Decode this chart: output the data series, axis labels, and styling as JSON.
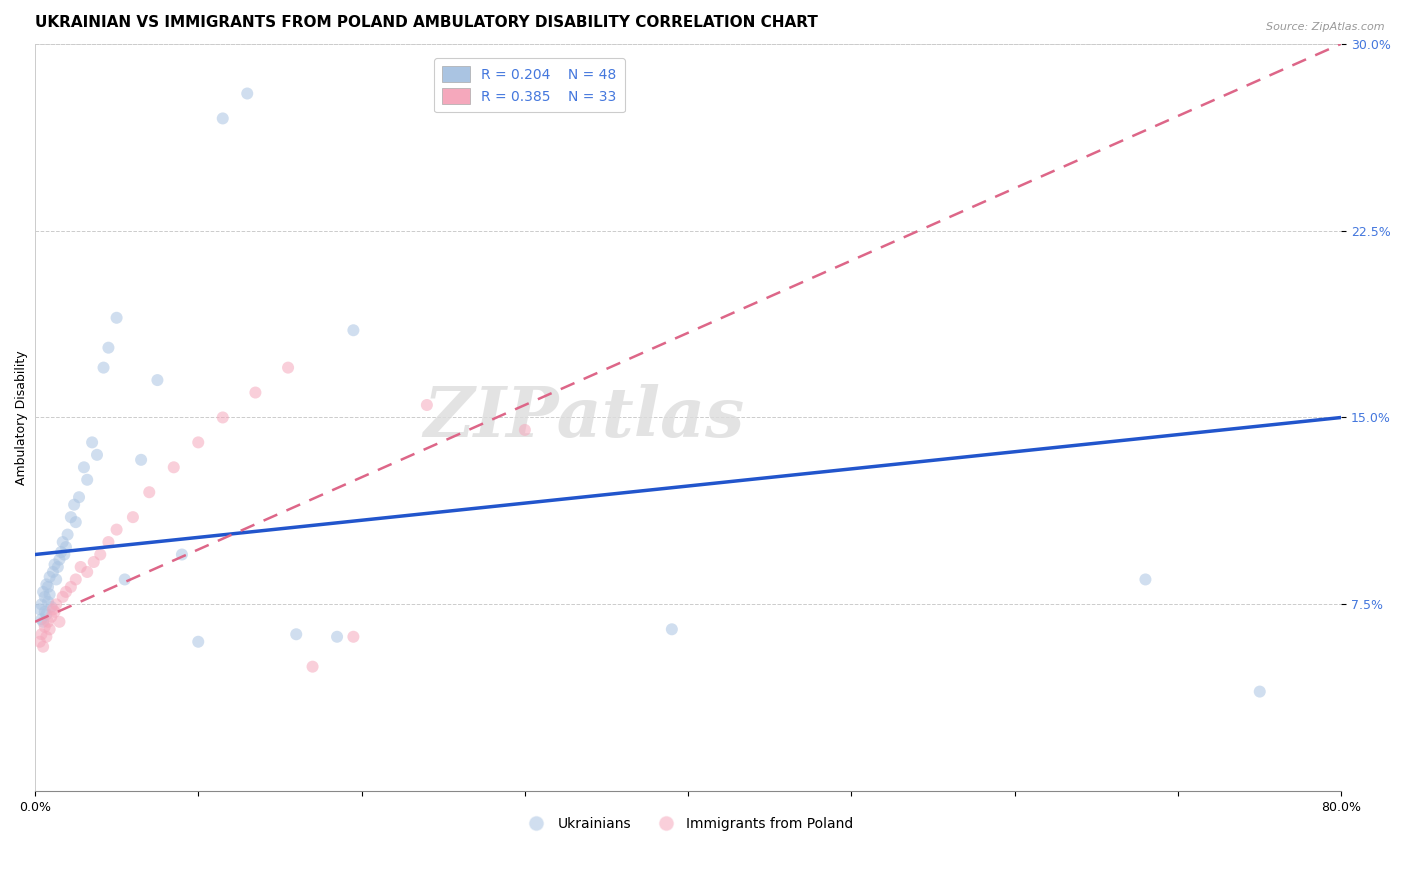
{
  "title": "UKRAINIAN VS IMMIGRANTS FROM POLAND AMBULATORY DISABILITY CORRELATION CHART",
  "source": "Source: ZipAtlas.com",
  "ylabel": "Ambulatory Disability",
  "xlim": [
    0.0,
    0.8
  ],
  "ylim": [
    0.0,
    0.3
  ],
  "ytick_positions": [
    0.075,
    0.15,
    0.225,
    0.3
  ],
  "ytick_labels": [
    "7.5%",
    "15.0%",
    "22.5%",
    "30.0%"
  ],
  "legend_r1": "R = 0.204",
  "legend_n1": "N = 48",
  "legend_r2": "R = 0.385",
  "legend_n2": "N = 33",
  "blue_color": "#aac4e2",
  "pink_color": "#f5a8bc",
  "line_blue": "#2255cc",
  "line_pink": "#dd6688",
  "tick_color_y": "#4477dd",
  "grid_color": "#cccccc",
  "background_color": "#ffffff",
  "ukrainians_x": [
    0.003,
    0.004,
    0.004,
    0.005,
    0.005,
    0.006,
    0.006,
    0.007,
    0.007,
    0.008,
    0.008,
    0.009,
    0.009,
    0.01,
    0.011,
    0.012,
    0.013,
    0.014,
    0.015,
    0.016,
    0.017,
    0.018,
    0.019,
    0.02,
    0.022,
    0.024,
    0.025,
    0.027,
    0.03,
    0.032,
    0.035,
    0.038,
    0.042,
    0.045,
    0.05,
    0.055,
    0.065,
    0.075,
    0.09,
    0.1,
    0.115,
    0.13,
    0.16,
    0.185,
    0.195,
    0.39,
    0.68,
    0.75
  ],
  "ukrainians_y": [
    0.073,
    0.069,
    0.075,
    0.068,
    0.08,
    0.072,
    0.078,
    0.071,
    0.083,
    0.076,
    0.082,
    0.079,
    0.086,
    0.074,
    0.088,
    0.091,
    0.085,
    0.09,
    0.093,
    0.096,
    0.1,
    0.095,
    0.098,
    0.103,
    0.11,
    0.115,
    0.108,
    0.118,
    0.13,
    0.125,
    0.14,
    0.135,
    0.17,
    0.178,
    0.19,
    0.085,
    0.133,
    0.165,
    0.095,
    0.06,
    0.27,
    0.28,
    0.063,
    0.062,
    0.185,
    0.065,
    0.085,
    0.04
  ],
  "poland_x": [
    0.003,
    0.004,
    0.005,
    0.006,
    0.007,
    0.008,
    0.009,
    0.01,
    0.011,
    0.012,
    0.013,
    0.015,
    0.017,
    0.019,
    0.022,
    0.025,
    0.028,
    0.032,
    0.036,
    0.04,
    0.045,
    0.05,
    0.06,
    0.07,
    0.085,
    0.1,
    0.115,
    0.135,
    0.155,
    0.17,
    0.195,
    0.24,
    0.3
  ],
  "poland_y": [
    0.06,
    0.063,
    0.058,
    0.066,
    0.062,
    0.068,
    0.065,
    0.07,
    0.073,
    0.072,
    0.075,
    0.068,
    0.078,
    0.08,
    0.082,
    0.085,
    0.09,
    0.088,
    0.092,
    0.095,
    0.1,
    0.105,
    0.11,
    0.12,
    0.13,
    0.14,
    0.15,
    0.16,
    0.17,
    0.05,
    0.062,
    0.155,
    0.145
  ],
  "blue_line_x": [
    0.0,
    0.8
  ],
  "blue_line_y": [
    0.095,
    0.15
  ],
  "pink_line_x": [
    0.0,
    0.8
  ],
  "pink_line_y": [
    0.068,
    0.3
  ],
  "watermark": "ZIPatlas",
  "marker_size": 75,
  "alpha": 0.55,
  "title_fontsize": 11,
  "label_fontsize": 9,
  "tick_fontsize": 9,
  "legend_fontsize": 10
}
